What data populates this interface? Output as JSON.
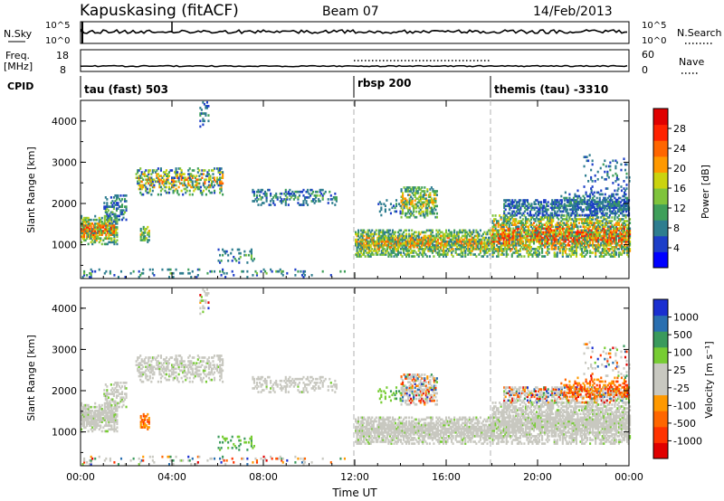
{
  "header": {
    "title": "Kapuskasing (fitACF)",
    "beam": "Beam 07",
    "date": "14/Feb/2013"
  },
  "top_panels": {
    "nsky_label": "N.Sky",
    "nsky_ticks": [
      "10^5",
      "10^0"
    ],
    "nsearch_label": "N.Search",
    "freq_label_1": "Freq.",
    "freq_label_2": "[MHz]",
    "freq_ticks": [
      "18",
      "8"
    ],
    "nave_label": "Nave",
    "nave_ticks": [
      "60",
      "0"
    ],
    "cpid_label": "CPID",
    "cpid_segments": [
      "tau (fast) 503",
      "rbsp 200",
      "themis (tau) -3310"
    ]
  },
  "colors": {
    "power_scale": [
      "#0000ff",
      "#1d3ec8",
      "#2e7d8f",
      "#3f9f5a",
      "#7fc43c",
      "#cbd30f",
      "#ff9900",
      "#ff6600",
      "#ff2200",
      "#e00000"
    ],
    "velocity_scale": [
      "#e00000",
      "#ff3300",
      "#ff6600",
      "#ff9900",
      "#c8c8c0",
      "#c8c8c0",
      "#77cc33",
      "#3a9a5c",
      "#2a6fb0",
      "#1a2fd0"
    ],
    "ground_scatter": "#c8c8c0"
  },
  "chart_data": [
    {
      "type": "heatmap",
      "panel": "power",
      "xlabel": "",
      "ylabel": "Slant Range [km]",
      "x_ticks": [
        "00:00",
        "04:00",
        "08:00",
        "12:00",
        "16:00",
        "20:00",
        "00:00"
      ],
      "y_ticks": [
        "1000",
        "2000",
        "3000",
        "4000"
      ],
      "xlim_hours": [
        0,
        24
      ],
      "ylim_km": [
        180,
        4500
      ],
      "mode_boundaries_hours": [
        12,
        18
      ],
      "colorbar_label": "Power [dB]",
      "colorbar_ticks": [
        "28",
        "24",
        "20",
        "16",
        "12",
        "8",
        "4"
      ],
      "colorbar_range": [
        0,
        30
      ]
    },
    {
      "type": "heatmap",
      "panel": "velocity",
      "xlabel": "Time UT",
      "ylabel": "Slant Range [km]",
      "x_ticks": [
        "00:00",
        "04:00",
        "08:00",
        "12:00",
        "16:00",
        "20:00",
        "00:00"
      ],
      "y_ticks": [
        "1000",
        "2000",
        "3000",
        "4000"
      ],
      "xlim_hours": [
        0,
        24
      ],
      "ylim_km": [
        180,
        4500
      ],
      "mode_boundaries_hours": [
        12,
        18
      ],
      "colorbar_label": "Velocity [m s⁻¹]",
      "colorbar_ticks": [
        "1000",
        "500",
        "100",
        "25",
        "-25",
        "-100",
        "-500",
        "-1000"
      ],
      "colorbar_range": [
        -1000,
        1000
      ]
    }
  ],
  "echo_regions": [
    {
      "t0": 0.0,
      "t1": 1.6,
      "r0": 1000,
      "r1": 1700,
      "density": 0.9,
      "power": [
        6,
        24
      ],
      "velocity": "ground"
    },
    {
      "t0": 1.0,
      "t1": 2.0,
      "r0": 1500,
      "r1": 2200,
      "density": 0.5,
      "power": [
        4,
        12
      ],
      "velocity": "ground"
    },
    {
      "t0": 2.4,
      "t1": 6.2,
      "r0": 2200,
      "r1": 2850,
      "density": 0.55,
      "power": [
        4,
        22
      ],
      "velocity": "ground"
    },
    {
      "t0": 2.6,
      "t1": 3.0,
      "r0": 1050,
      "r1": 1450,
      "density": 0.7,
      "power": [
        8,
        20
      ],
      "velocity": "neg"
    },
    {
      "t0": 5.2,
      "t1": 5.6,
      "r0": 3850,
      "r1": 4450,
      "density": 0.35,
      "power": [
        4,
        10
      ],
      "velocity": "mixed"
    },
    {
      "t0": 6.0,
      "t1": 7.6,
      "r0": 550,
      "r1": 900,
      "density": 0.25,
      "power": [
        4,
        12
      ],
      "velocity": "pos"
    },
    {
      "t0": 7.5,
      "t1": 11.2,
      "r0": 1950,
      "r1": 2350,
      "density": 0.4,
      "power": [
        4,
        12
      ],
      "velocity": "ground"
    },
    {
      "t0": 0.0,
      "t1": 12.0,
      "r0": 200,
      "r1": 420,
      "density": 0.12,
      "power": [
        4,
        12
      ],
      "velocity": "mixed"
    },
    {
      "t0": 12.0,
      "t1": 18.0,
      "r0": 700,
      "r1": 1350,
      "density": 0.92,
      "power": [
        6,
        22
      ],
      "velocity": "ground"
    },
    {
      "t0": 14.0,
      "t1": 15.6,
      "r0": 1650,
      "r1": 2400,
      "density": 0.7,
      "power": [
        6,
        20
      ],
      "velocity": "mixed"
    },
    {
      "t0": 13.0,
      "t1": 14.0,
      "r0": 1700,
      "r1": 2100,
      "density": 0.3,
      "power": [
        4,
        10
      ],
      "velocity": "pos"
    },
    {
      "t0": 18.0,
      "t1": 24.0,
      "r0": 700,
      "r1": 1700,
      "density": 0.95,
      "power": [
        6,
        26
      ],
      "velocity": "ground"
    },
    {
      "t0": 18.5,
      "t1": 24.0,
      "r0": 1700,
      "r1": 2100,
      "density": 0.7,
      "power": [
        4,
        10
      ],
      "velocity": "mixed"
    },
    {
      "t0": 21.0,
      "t1": 24.0,
      "r0": 1800,
      "r1": 2300,
      "density": 0.45,
      "power": [
        4,
        10
      ],
      "velocity": "neg"
    },
    {
      "t0": 22.0,
      "t1": 24.0,
      "r0": 2300,
      "r1": 3200,
      "density": 0.12,
      "power": [
        4,
        10
      ],
      "velocity": "mixed"
    }
  ]
}
